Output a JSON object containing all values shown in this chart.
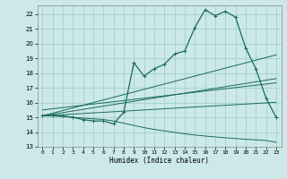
{
  "title": "",
  "xlabel": "Humidex (Indice chaleur)",
  "bg_color": "#cce8e8",
  "grid_color": "#99cccc",
  "line_color": "#1a6b5a",
  "xlim": [
    -0.5,
    23.5
  ],
  "ylim": [
    13,
    22.6
  ],
  "yticks": [
    13,
    14,
    15,
    16,
    17,
    18,
    19,
    20,
    21,
    22
  ],
  "xticks": [
    0,
    1,
    2,
    3,
    4,
    5,
    6,
    7,
    8,
    9,
    10,
    11,
    12,
    13,
    14,
    15,
    16,
    17,
    18,
    19,
    20,
    21,
    22,
    23
  ],
  "main_curve": [
    15.1,
    15.1,
    15.1,
    15.0,
    14.85,
    14.75,
    14.75,
    14.55,
    15.35,
    18.7,
    17.8,
    18.3,
    18.6,
    19.3,
    19.5,
    21.1,
    22.3,
    21.9,
    22.2,
    21.8,
    19.7,
    18.3,
    16.3,
    15.0
  ],
  "reg1": [
    15.1,
    15.28,
    15.46,
    15.64,
    15.82,
    16.0,
    16.18,
    16.36,
    16.54,
    16.72,
    16.9,
    17.08,
    17.26,
    17.44,
    17.62,
    17.8,
    17.98,
    18.16,
    18.34,
    18.52,
    18.7,
    18.88,
    19.06,
    19.24
  ],
  "reg2": [
    15.1,
    15.21,
    15.32,
    15.43,
    15.54,
    15.65,
    15.76,
    15.87,
    15.98,
    16.09,
    16.2,
    16.31,
    16.42,
    16.53,
    16.64,
    16.75,
    16.86,
    16.97,
    17.08,
    17.19,
    17.3,
    17.41,
    17.52,
    17.63
  ],
  "reg3": [
    15.1,
    15.14,
    15.18,
    15.22,
    15.26,
    15.3,
    15.34,
    15.38,
    15.42,
    15.46,
    15.5,
    15.54,
    15.58,
    15.62,
    15.66,
    15.7,
    15.74,
    15.78,
    15.82,
    15.86,
    15.9,
    15.94,
    15.98,
    16.02
  ],
  "reg4": [
    15.5,
    15.58,
    15.66,
    15.74,
    15.82,
    15.9,
    15.98,
    16.06,
    16.14,
    16.22,
    16.3,
    16.38,
    16.46,
    16.54,
    16.62,
    16.7,
    16.78,
    16.86,
    16.94,
    17.02,
    17.1,
    17.18,
    17.26,
    17.34
  ],
  "bottom_curve": [
    15.1,
    15.1,
    15.05,
    15.0,
    14.95,
    14.9,
    14.85,
    14.75,
    14.6,
    14.45,
    14.3,
    14.18,
    14.08,
    13.98,
    13.88,
    13.8,
    13.73,
    13.67,
    13.61,
    13.56,
    13.51,
    13.47,
    13.43,
    13.3
  ]
}
